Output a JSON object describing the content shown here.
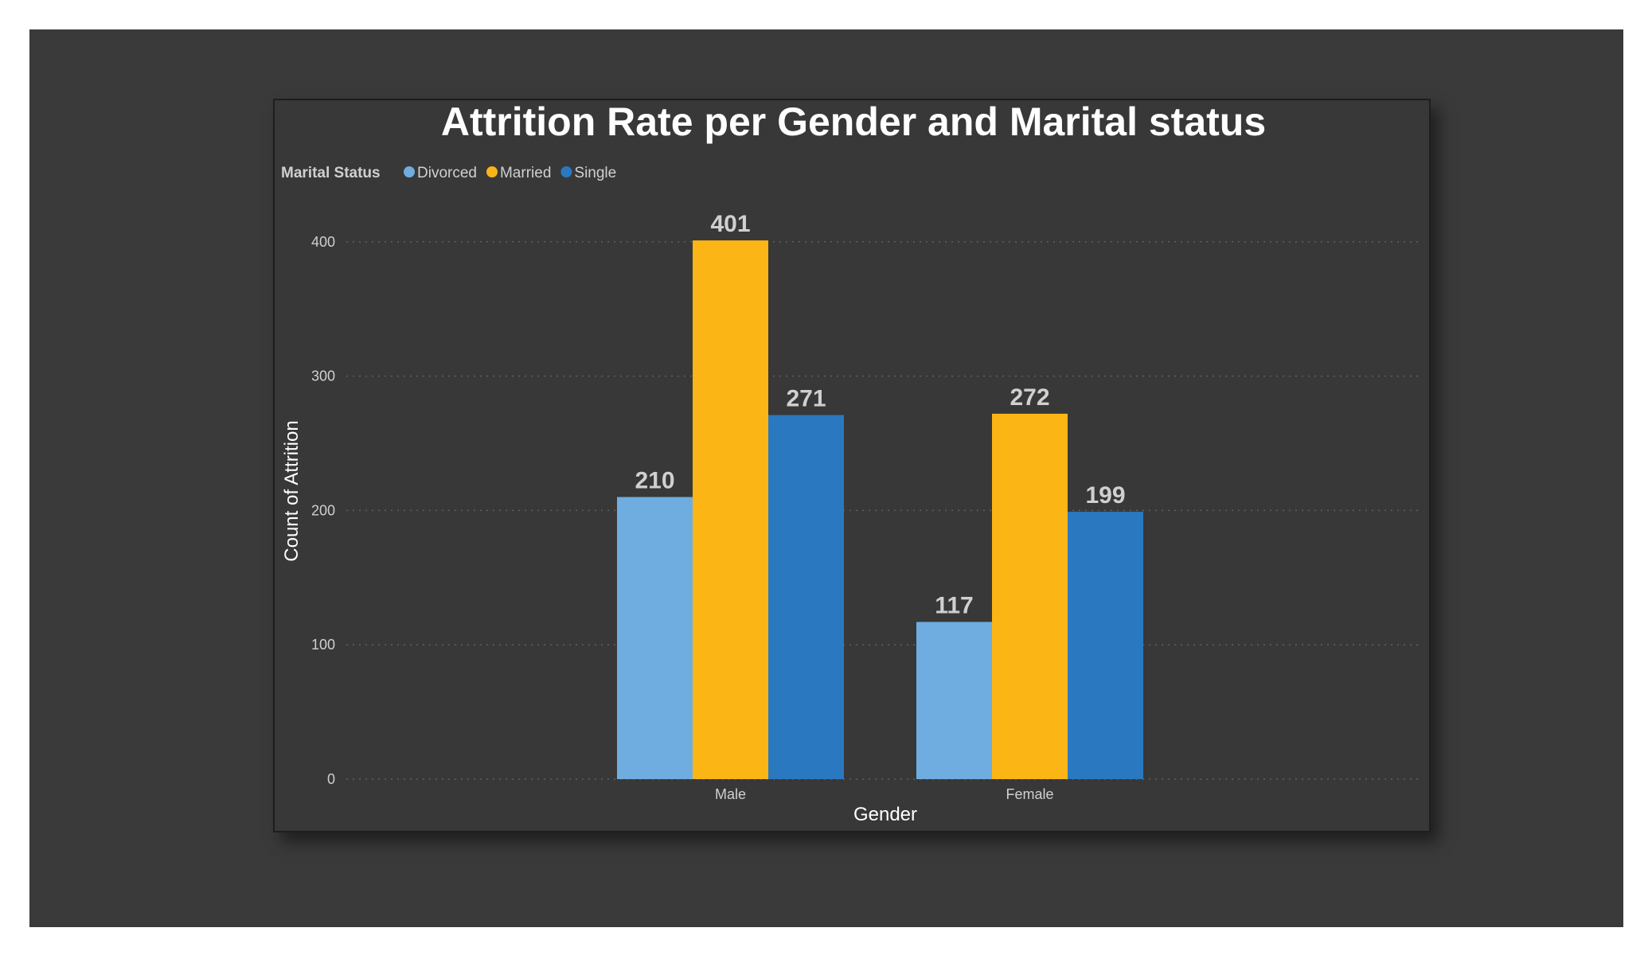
{
  "chart_data": {
    "type": "bar",
    "title": "Attrition Rate per Gender and Marital status",
    "xlabel": "Gender",
    "ylabel": "Count of Attrition",
    "legend_title": "Marital Status",
    "legend_position": "top-left",
    "grid": true,
    "ylim": [
      0,
      440
    ],
    "yticks": [
      0,
      100,
      200,
      300,
      400
    ],
    "categories": [
      "Male",
      "Female"
    ],
    "series": [
      {
        "name": "Divorced",
        "color": "#6fade0",
        "values": [
          210,
          117
        ]
      },
      {
        "name": "Married",
        "color": "#fbb515",
        "values": [
          401,
          272
        ]
      },
      {
        "name": "Single",
        "color": "#2a78c0",
        "values": [
          271,
          199
        ]
      }
    ]
  },
  "colors": {
    "background": "#3a3a3a",
    "card": "#383838",
    "text": "#ffffff",
    "label": "#d0d0d0",
    "grid": "#606060"
  }
}
